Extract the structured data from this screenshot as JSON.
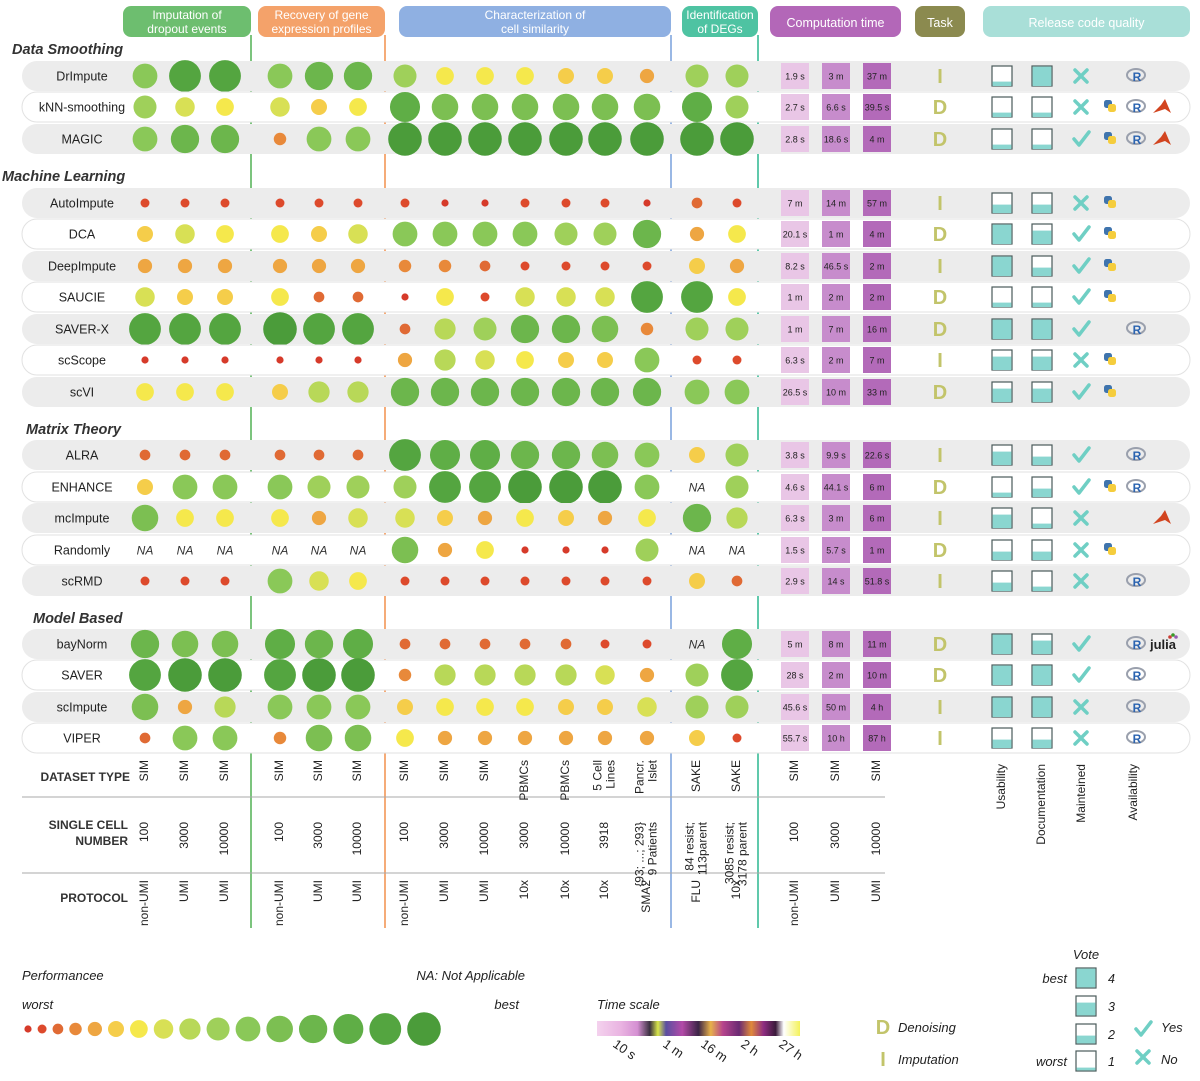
{
  "colors": {
    "imputation": "#6dbe6f",
    "recovery": "#f4a26a",
    "similarity": "#8fb0e2",
    "degs": "#4ec3a2",
    "time": "#b367b8",
    "task": "#8b8a4f",
    "release": "#a9dfd8",
    "row_band": "#ececec",
    "check": "#6fcfc4",
    "box_fill": "#8ad6d0"
  },
  "headers": [
    {
      "key": "imputation",
      "label": "Imputation of dropout events"
    },
    {
      "key": "recovery",
      "label": "Recovery of gene expression profiles"
    },
    {
      "key": "similarity",
      "label": "Characterization of cell similarity"
    },
    {
      "key": "degs",
      "label": "Identification of DEGs"
    },
    {
      "key": "time",
      "label": "Computation time"
    },
    {
      "key": "task",
      "label": "Task"
    },
    {
      "key": "release",
      "label": "Release code quality"
    }
  ],
  "headers_text": {
    "imputation": [
      "Imputation of",
      "dropout events"
    ],
    "recovery": [
      "Recovery of gene",
      "expression profiles"
    ],
    "similarity": [
      "Characterization of",
      "cell similarity"
    ],
    "degs": [
      "Identification",
      "of DEGs"
    ],
    "time": [
      "Computation time"
    ],
    "task": [
      "Task"
    ],
    "release": [
      "Release code quality"
    ]
  },
  "chart_data": {
    "type": "table",
    "performance_scale": "0 = worst, 15 = best (circle size and colour)",
    "columns": {
      "imputation": [
        "SIM 100 non-UMI",
        "SIM 3000 UMI",
        "SIM 10000 UMI"
      ],
      "recovery": [
        "SIM 100 non-UMI",
        "SIM 3000 UMI",
        "SIM 10000 UMI"
      ],
      "similarity": [
        "SIM 100 non-UMI",
        "SIM 3000 UMI",
        "SIM 10000 UMI",
        "PBMCs 3000 10x",
        "PBMCs 10000 10x",
        "5 Cell Lines 3918 10x",
        "Pancr. Islet SMA2"
      ],
      "degs": [
        "SAKE FLU",
        "SAKE 10x"
      ],
      "time": [
        "SIM 100 non-UMI",
        "SIM 3000 UMI",
        "SIM 10000 UMI"
      ]
    },
    "groups": [
      {
        "name": "Data Smoothing",
        "methods": [
          {
            "name": "DrImpute",
            "imputation": [
              10,
              14,
              14
            ],
            "recovery": [
              10,
              12,
              12
            ],
            "similarity": [
              9,
              6,
              6,
              6,
              5,
              5,
              4
            ],
            "degs": [
              9,
              9
            ],
            "time": [
              "1.9 s",
              "3 m",
              "37 m"
            ],
            "task": "I",
            "usability": 1,
            "documentation": 4,
            "maintained": "No",
            "availability": [
              "R"
            ]
          },
          {
            "name": "kNN-smoothing",
            "imputation": [
              9,
              7,
              6
            ],
            "recovery": [
              7,
              5,
              6
            ],
            "similarity": [
              13,
              11,
              11,
              11,
              11,
              11,
              11
            ],
            "degs": [
              13,
              9
            ],
            "time": [
              "2.7 s",
              "6.6 s",
              "39.5 s"
            ],
            "task": "D",
            "usability": 1,
            "documentation": 1,
            "maintained": "No",
            "availability": [
              "Python",
              "R",
              "MATLAB"
            ]
          },
          {
            "name": "MAGIC",
            "imputation": [
              10,
              12,
              12
            ],
            "recovery": [
              3,
              10,
              10
            ],
            "similarity": [
              15,
              15,
              15,
              15,
              15,
              15,
              15
            ],
            "degs": [
              15,
              15
            ],
            "time": [
              "2.8 s",
              "18.6 s",
              "4 m"
            ],
            "task": "D",
            "usability": 1,
            "documentation": 1,
            "maintained": "Yes",
            "availability": [
              "Python",
              "R",
              "MATLAB"
            ]
          }
        ]
      },
      {
        "name": "Machine Learning",
        "methods": [
          {
            "name": "AutoImpute",
            "imputation": [
              1,
              1,
              1
            ],
            "recovery": [
              1,
              1,
              1
            ],
            "similarity": [
              1,
              0,
              0,
              1,
              1,
              1,
              0
            ],
            "degs": [
              2,
              1
            ],
            "time": [
              "7 m",
              "14 m",
              "57 m"
            ],
            "task": "I",
            "usability": 2,
            "documentation": 2,
            "maintained": "No",
            "availability": [
              "Python"
            ]
          },
          {
            "name": "DCA",
            "imputation": [
              5,
              7,
              6
            ],
            "recovery": [
              6,
              5,
              7
            ],
            "similarity": [
              10,
              10,
              10,
              10,
              9,
              9,
              12
            ],
            "degs": [
              4,
              6
            ],
            "time": [
              "20.1 s",
              "1 m",
              "4 m"
            ],
            "task": "D",
            "usability": 4,
            "documentation": 3,
            "maintained": "Yes",
            "availability": [
              "Python"
            ]
          },
          {
            "name": "DeepImpute",
            "imputation": [
              4,
              4,
              4
            ],
            "recovery": [
              4,
              4,
              4
            ],
            "similarity": [
              3,
              3,
              2,
              1,
              1,
              1,
              1
            ],
            "degs": [
              5,
              4
            ],
            "time": [
              "8.2 s",
              "46.5 s",
              "2 m"
            ],
            "task": "I",
            "usability": 4,
            "documentation": 2,
            "maintained": "Yes",
            "availability": [
              "Python"
            ]
          },
          {
            "name": "SAUCIE",
            "imputation": [
              7,
              5,
              5
            ],
            "recovery": [
              6,
              2,
              2
            ],
            "similarity": [
              0,
              6,
              1,
              7,
              7,
              7,
              14
            ],
            "degs": [
              14,
              6
            ],
            "time": [
              "1 m",
              "2 m",
              "2 m"
            ],
            "task": "D",
            "usability": 1,
            "documentation": 1,
            "maintained": "Yes",
            "availability": [
              "Python"
            ]
          },
          {
            "name": "SAVER-X",
            "imputation": [
              14,
              14,
              14
            ],
            "recovery": [
              15,
              14,
              14
            ],
            "similarity": [
              2,
              8,
              9,
              12,
              12,
              11,
              3
            ],
            "degs": [
              9,
              9
            ],
            "time": [
              "1 m",
              "7 m",
              "16 m"
            ],
            "task": "D",
            "usability": 4,
            "documentation": 4,
            "maintained": "Yes",
            "availability": [
              "R"
            ]
          },
          {
            "name": "scScope",
            "imputation": [
              0,
              0,
              0
            ],
            "recovery": [
              0,
              0,
              0
            ],
            "similarity": [
              4,
              8,
              7,
              6,
              5,
              5,
              10
            ],
            "degs": [
              1,
              1
            ],
            "time": [
              "6.3 s",
              "2 m",
              "7 m"
            ],
            "task": "I",
            "usability": 3,
            "documentation": 3,
            "maintained": "No",
            "availability": [
              "Python"
            ]
          },
          {
            "name": "scVI",
            "imputation": [
              6,
              6,
              6
            ],
            "recovery": [
              5,
              8,
              8
            ],
            "similarity": [
              12,
              12,
              12,
              12,
              12,
              12,
              12
            ],
            "degs": [
              10,
              10
            ],
            "time": [
              "26.5 s",
              "10 m",
              "33 m"
            ],
            "task": "D",
            "usability": 3,
            "documentation": 3,
            "maintained": "Yes",
            "availability": [
              "Python"
            ]
          }
        ]
      },
      {
        "name": "Matrix Theory",
        "methods": [
          {
            "name": "ALRA",
            "imputation": [
              2,
              2,
              2
            ],
            "recovery": [
              2,
              2,
              2
            ],
            "similarity": [
              14,
              13,
              13,
              12,
              12,
              11,
              10
            ],
            "degs": [
              5,
              9
            ],
            "time": [
              "3.8 s",
              "9.9 s",
              "22.6 s"
            ],
            "task": "I",
            "usability": 3,
            "documentation": 2,
            "maintained": "Yes",
            "availability": [
              "R"
            ]
          },
          {
            "name": "ENHANCE",
            "imputation": [
              5,
              10,
              10
            ],
            "recovery": [
              10,
              9,
              9
            ],
            "similarity": [
              9,
              14,
              14,
              15,
              15,
              15,
              10
            ],
            "degs": [
              "NA",
              9
            ],
            "time": [
              "4.6 s",
              "44.1 s",
              "6 m"
            ],
            "task": "D",
            "usability": 1,
            "documentation": 2,
            "maintained": "Yes",
            "availability": [
              "Python",
              "R"
            ]
          },
          {
            "name": "mcImpute",
            "imputation": [
              11,
              6,
              6
            ],
            "recovery": [
              6,
              4,
              7
            ],
            "similarity": [
              7,
              5,
              4,
              6,
              5,
              4,
              6
            ],
            "degs": [
              12,
              8
            ],
            "time": [
              "6.3 s",
              "3 m",
              "6 m"
            ],
            "task": "I",
            "usability": 3,
            "documentation": 1,
            "maintained": "No",
            "availability": [
              "MATLAB"
            ]
          },
          {
            "name": "Randomly",
            "imputation": [
              "NA",
              "NA",
              "NA"
            ],
            "recovery": [
              "NA",
              "NA",
              "NA"
            ],
            "similarity": [
              11,
              4,
              6,
              0,
              0,
              0,
              9
            ],
            "degs": [
              "NA",
              "NA"
            ],
            "time": [
              "1.5 s",
              "5.7 s",
              "1 m"
            ],
            "task": "D",
            "usability": 2,
            "documentation": 2,
            "maintained": "No",
            "availability": [
              "Python"
            ]
          },
          {
            "name": "scRMD",
            "imputation": [
              1,
              1,
              1
            ],
            "recovery": [
              10,
              7,
              6
            ],
            "similarity": [
              1,
              1,
              1,
              1,
              1,
              1,
              1
            ],
            "degs": [
              5,
              2
            ],
            "time": [
              "2.9 s",
              "14 s",
              "51.8 s"
            ],
            "task": "I",
            "usability": 2,
            "documentation": 1,
            "maintained": "No",
            "availability": [
              "R"
            ]
          }
        ]
      },
      {
        "name": "Model Based",
        "methods": [
          {
            "name": "bayNorm",
            "imputation": [
              12,
              11,
              11
            ],
            "recovery": [
              13,
              12,
              13
            ],
            "similarity": [
              2,
              2,
              2,
              2,
              2,
              1,
              1
            ],
            "degs": [
              "NA",
              13
            ],
            "time": [
              "5 m",
              "8 m",
              "11 m"
            ],
            "task": "D",
            "usability": 4,
            "documentation": 3,
            "maintained": "Yes",
            "availability": [
              "R",
              "julia"
            ]
          },
          {
            "name": "SAVER",
            "imputation": [
              14,
              15,
              15
            ],
            "recovery": [
              14,
              15,
              15
            ],
            "similarity": [
              3,
              8,
              8,
              8,
              8,
              7,
              4
            ],
            "degs": [
              9,
              14
            ],
            "time": [
              "28 s",
              "2 m",
              "10 m"
            ],
            "task": "D",
            "usability": 4,
            "documentation": 4,
            "maintained": "Yes",
            "availability": [
              "R"
            ]
          },
          {
            "name": "scImpute",
            "imputation": [
              11,
              4,
              8
            ],
            "recovery": [
              10,
              10,
              10
            ],
            "similarity": [
              5,
              6,
              6,
              6,
              5,
              5,
              7
            ],
            "degs": [
              9,
              9
            ],
            "time": [
              "45.6 s",
              "50 m",
              "4 h"
            ],
            "task": "I",
            "usability": 4,
            "documentation": 4,
            "maintained": "No",
            "availability": [
              "R"
            ]
          },
          {
            "name": "VIPER",
            "imputation": [
              2,
              10,
              10
            ],
            "recovery": [
              3,
              11,
              11
            ],
            "similarity": [
              6,
              4,
              4,
              4,
              4,
              4,
              4
            ],
            "degs": [
              5,
              1
            ],
            "time": [
              "55.7 s",
              "10 h",
              "87 h"
            ],
            "task": "I",
            "usability": 2,
            "documentation": 2,
            "maintained": "No",
            "availability": [
              "R"
            ]
          }
        ]
      }
    ]
  },
  "footer": {
    "row_labels": {
      "dataset": "DATASET TYPE",
      "cellnum1": "SINGLE CELL",
      "cellnum2": "NUMBER",
      "protocol": "PROTOCOL"
    },
    "dataset_type": [
      "SIM",
      "SIM",
      "SIM",
      "SIM",
      "SIM",
      "SIM",
      "SIM",
      "SIM",
      "SIM",
      "PBMCs",
      "PBMCs",
      "5 Cell|Lines",
      "Pancr.|Islet",
      "SAKE",
      "SAKE",
      "SIM",
      "SIM",
      "SIM"
    ],
    "single_cell_number": [
      "100",
      "3000",
      "10000",
      "100",
      "3000",
      "10000",
      "100",
      "3000",
      "10000",
      "3000",
      "10000",
      "3918",
      "{93; ...; 293}|9 Patients",
      "84 resist;|113parent",
      "3085 resist;|3178 parent",
      "100",
      "3000",
      "10000"
    ],
    "protocol": [
      "non-UMI",
      "UMI",
      "UMI",
      "non-UMI",
      "UMI",
      "UMI",
      "non-UMI",
      "UMI",
      "UMI",
      "10x",
      "10x",
      "10x",
      "SMA2",
      "FLU",
      "10x",
      "non-UMI",
      "UMI",
      "UMI"
    ],
    "quality_labels": [
      "Usability",
      "Documentation",
      "Mainteined",
      "Availability"
    ]
  },
  "legend": {
    "performance_title": "Performancee",
    "worst": "worst",
    "best": "best",
    "na_note": "NA: Not Applicable",
    "time_scale_title": "Time scale",
    "time_ticks": [
      "10 s",
      "1 m",
      "16 m",
      "2 h",
      "27 h"
    ],
    "denoising": "Denoising",
    "imputation": "Imputation",
    "vote_title": "Vote",
    "vote_best": "best",
    "vote_worst": "worst",
    "vote_levels": [
      "4",
      "3",
      "2",
      "1"
    ],
    "yes": "Yes",
    "no": "No",
    "na": "NA",
    "task_D": "D",
    "task_I": "I",
    "avail_R": "R",
    "avail_julia": "julia"
  }
}
